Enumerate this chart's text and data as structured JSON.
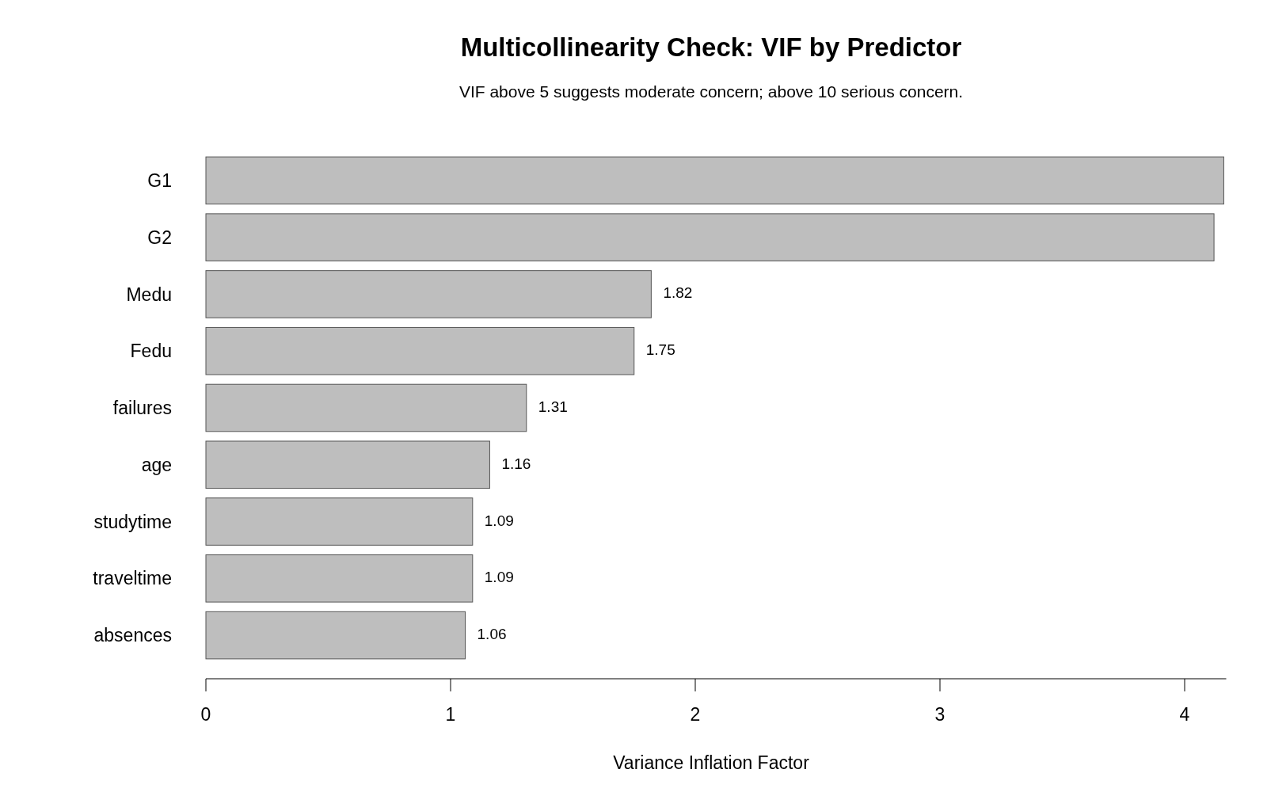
{
  "chart_data": {
    "type": "bar",
    "orientation": "horizontal",
    "title": "Multicollinearity Check: VIF by Predictor",
    "subtitle": "VIF above 5 suggests moderate concern; above 10 serious concern.",
    "xlabel": "Variance Inflation Factor",
    "categories": [
      "G1",
      "G2",
      "Medu",
      "Fedu",
      "failures",
      "age",
      "studytime",
      "traveltime",
      "absences"
    ],
    "values": [
      4.16,
      4.12,
      1.82,
      1.75,
      1.31,
      1.16,
      1.09,
      1.09,
      1.06
    ],
    "value_labels": [
      null,
      null,
      "1.82",
      "1.75",
      "1.31",
      "1.16",
      "1.09",
      "1.09",
      "1.06"
    ],
    "color": "#bebebe",
    "xlim": [
      0,
      4.17
    ],
    "xticks": [
      0,
      1,
      2,
      3,
      4
    ],
    "grid": false
  }
}
